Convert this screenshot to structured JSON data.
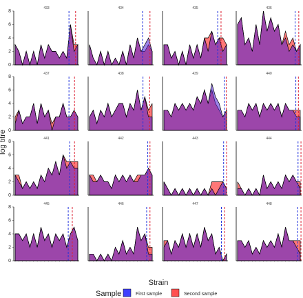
{
  "chart_data": {
    "type": "area",
    "xlabel": "Strain",
    "ylabel": "log titre",
    "ylim": [
      0,
      8
    ],
    "yticks": [
      0,
      2,
      4,
      6,
      8
    ],
    "grid": false,
    "legend": {
      "title": "Sample",
      "position": "bottom",
      "entries": [
        {
          "name": "First sample",
          "color": "#3333ff"
        },
        {
          "name": "Second sample",
          "color": "#ff4d4d"
        }
      ]
    },
    "overlap_color": "#b03060",
    "facets": [
      {
        "id": "433",
        "first": [
          3,
          2,
          0,
          2,
          0,
          2,
          0,
          3,
          1,
          3,
          2,
          2,
          1,
          2,
          1,
          6,
          2,
          3
        ],
        "second": [
          3,
          2,
          0,
          2,
          0,
          2,
          0,
          3,
          1,
          3,
          2,
          2,
          1,
          2,
          1,
          6,
          3,
          3
        ],
        "markers": [
          14.6,
          16.4
        ]
      },
      {
        "id": "434",
        "first": [
          3,
          1,
          0,
          2,
          0,
          2,
          0,
          1,
          0,
          2,
          0,
          3,
          1,
          4,
          2,
          3,
          4,
          2
        ],
        "second": [
          3,
          1,
          0,
          2,
          0,
          2,
          0,
          1,
          0,
          2,
          0,
          3,
          1,
          4,
          2,
          2,
          3,
          2
        ],
        "markers": [
          14.4,
          16.4
        ]
      },
      {
        "id": "435",
        "first": [
          3,
          3,
          1,
          2,
          0,
          2,
          0,
          3,
          1,
          3,
          1,
          4,
          2,
          5,
          3,
          4,
          2,
          3
        ],
        "second": [
          3,
          3,
          1,
          2,
          0,
          2,
          0,
          3,
          1,
          3,
          1,
          4,
          4,
          5,
          3,
          4,
          4,
          3
        ],
        "markers": [
          14.6,
          15.5
        ]
      },
      {
        "id": "436",
        "first": [
          6,
          7,
          3,
          4,
          2,
          6,
          3,
          8,
          5,
          7,
          5,
          6,
          3,
          4,
          2,
          3,
          2,
          3
        ],
        "second": [
          6,
          7,
          3,
          4,
          2,
          6,
          3,
          8,
          5,
          7,
          5,
          6,
          3,
          5,
          3,
          4,
          2,
          3
        ],
        "markers": [
          15.6,
          16.6
        ]
      },
      {
        "id": "437",
        "first": [
          1,
          3,
          1,
          2,
          2,
          4,
          1,
          4,
          2,
          3,
          0,
          2,
          2,
          4,
          2,
          2,
          3,
          2
        ],
        "second": [
          2,
          3,
          1,
          2,
          2,
          4,
          1,
          4,
          2,
          3,
          1,
          2,
          2,
          4,
          2,
          2,
          3,
          2
        ],
        "markers": [
          14.6,
          16.1
        ]
      },
      {
        "id": "438",
        "first": [
          2,
          3,
          1,
          3,
          2,
          4,
          2,
          3,
          4,
          4,
          2,
          4,
          3,
          6,
          3,
          5,
          2,
          2
        ],
        "second": [
          2,
          3,
          1,
          3,
          2,
          4,
          2,
          3,
          4,
          4,
          2,
          4,
          3,
          6,
          3,
          5,
          3,
          4
        ],
        "markers": [
          14.5,
          16.3
        ]
      },
      {
        "id": "439",
        "first": [
          3,
          3,
          2,
          4,
          3,
          4,
          3,
          4,
          3,
          5,
          4,
          6,
          4,
          7,
          5,
          4,
          2,
          3
        ],
        "second": [
          3,
          3,
          2,
          4,
          3,
          4,
          3,
          4,
          3,
          5,
          4,
          6,
          4,
          6,
          4,
          3,
          2,
          3
        ],
        "markers": [
          16.4,
          16.9
        ]
      },
      {
        "id": "440",
        "first": [
          3,
          3,
          2,
          4,
          3,
          4,
          2,
          4,
          3,
          4,
          3,
          4,
          2,
          4,
          3,
          3,
          2,
          2
        ],
        "second": [
          3,
          3,
          2,
          4,
          3,
          4,
          2,
          4,
          3,
          4,
          3,
          4,
          2,
          4,
          3,
          3,
          3,
          3
        ],
        "markers": [
          15.8,
          16.5
        ]
      },
      {
        "id": "441",
        "first": [
          3,
          2,
          1,
          2,
          1,
          2,
          1,
          3,
          2,
          4,
          3,
          5,
          3,
          6,
          4,
          5,
          4,
          4
        ],
        "second": [
          3,
          3,
          1,
          2,
          1,
          2,
          1,
          3,
          2,
          4,
          3,
          5,
          3,
          6,
          5,
          5,
          5,
          5
        ],
        "markers": [
          14.8,
          16.1
        ]
      },
      {
        "id": "442",
        "first": [
          3,
          2,
          2,
          3,
          2,
          2,
          1,
          3,
          2,
          3,
          2,
          3,
          2,
          2,
          3,
          3,
          4,
          3
        ],
        "second": [
          3,
          3,
          2,
          3,
          2,
          2,
          1,
          3,
          2,
          3,
          2,
          3,
          2,
          3,
          3,
          3,
          4,
          3
        ],
        "markers": [
          15.8,
          16.4
        ]
      },
      {
        "id": "443",
        "first": [
          2,
          1,
          0,
          1,
          0,
          1,
          0,
          1,
          0,
          1,
          0,
          1,
          0,
          1,
          0,
          1,
          2,
          1
        ],
        "second": [
          2,
          1,
          0,
          1,
          0,
          1,
          0,
          1,
          0,
          1,
          0,
          1,
          0,
          2,
          2,
          2,
          2,
          1
        ],
        "markers": [
          16.2,
          17.0
        ]
      },
      {
        "id": "444",
        "first": [
          1,
          1,
          0,
          1,
          0,
          1,
          0,
          3,
          1,
          2,
          1,
          2,
          1,
          3,
          2,
          3,
          2,
          1
        ],
        "second": [
          2,
          1,
          0,
          1,
          0,
          1,
          0,
          3,
          1,
          2,
          1,
          2,
          1,
          3,
          2,
          3,
          2,
          2
        ],
        "markers": [
          16.4,
          17.2
        ]
      },
      {
        "id": "445",
        "first": [
          4,
          4,
          3,
          4,
          2,
          4,
          2,
          5,
          3,
          4,
          2,
          4,
          3,
          4,
          2,
          4,
          5,
          3
        ],
        "second": [
          4,
          4,
          3,
          4,
          2,
          4,
          2,
          5,
          3,
          4,
          2,
          4,
          3,
          4,
          2,
          4,
          5,
          3
        ],
        "markers": [
          14.4,
          15.5
        ]
      },
      {
        "id": "446",
        "first": [
          1,
          1,
          0,
          1,
          0,
          1,
          0,
          2,
          1,
          3,
          1,
          2,
          1,
          5,
          3,
          4,
          1,
          1
        ],
        "second": [
          1,
          1,
          0,
          1,
          0,
          1,
          0,
          2,
          1,
          3,
          1,
          2,
          1,
          5,
          3,
          4,
          2,
          2
        ],
        "markers": [
          15.5,
          16.4
        ]
      },
      {
        "id": "447",
        "first": [
          2,
          3,
          1,
          3,
          2,
          4,
          2,
          4,
          2,
          4,
          2,
          5,
          3,
          4,
          1,
          2,
          0,
          1
        ],
        "second": [
          3,
          3,
          1,
          3,
          2,
          4,
          2,
          4,
          2,
          4,
          2,
          5,
          3,
          4,
          1,
          2,
          0,
          1
        ],
        "markers": [
          15.6,
          16.5
        ]
      },
      {
        "id": "448",
        "first": [
          3,
          3,
          2,
          3,
          1,
          2,
          1,
          3,
          2,
          3,
          2,
          4,
          2,
          5,
          3,
          3,
          2,
          1
        ],
        "second": [
          3,
          3,
          2,
          3,
          1,
          2,
          1,
          3,
          2,
          3,
          2,
          4,
          2,
          5,
          3,
          3,
          3,
          3
        ],
        "markers": [
          16.3,
          17.2
        ]
      }
    ]
  }
}
